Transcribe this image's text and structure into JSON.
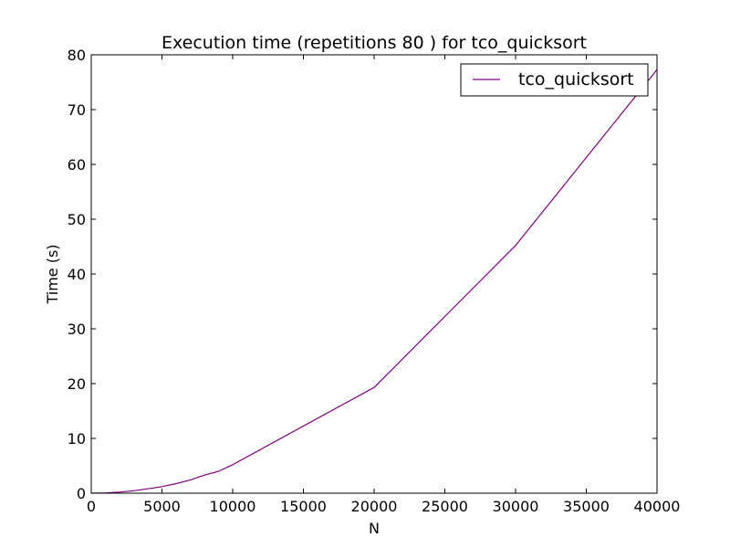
{
  "chart_data": {
    "type": "line",
    "title": "Execution time (repetitions 80 ) for tco_quicksort",
    "xlabel": "N",
    "ylabel": "Time (s)",
    "xlim": [
      0,
      40000
    ],
    "ylim": [
      0,
      80
    ],
    "xticks": [
      0,
      5000,
      10000,
      15000,
      20000,
      25000,
      30000,
      35000,
      40000
    ],
    "yticks": [
      0,
      10,
      20,
      30,
      40,
      50,
      60,
      70,
      80
    ],
    "grid": false,
    "legend_position": "top-right",
    "series": [
      {
        "name": "tco_quicksort",
        "color": "#800080",
        "x": [
          0,
          1000,
          2000,
          3000,
          4000,
          5000,
          6000,
          7000,
          8000,
          9000,
          10000,
          20000,
          30000,
          40000
        ],
        "y": [
          0,
          0.05,
          0.2,
          0.45,
          0.8,
          1.2,
          1.75,
          2.4,
          3.3,
          4.0,
          5.2,
          19.3,
          45.2,
          77.3
        ]
      }
    ]
  }
}
